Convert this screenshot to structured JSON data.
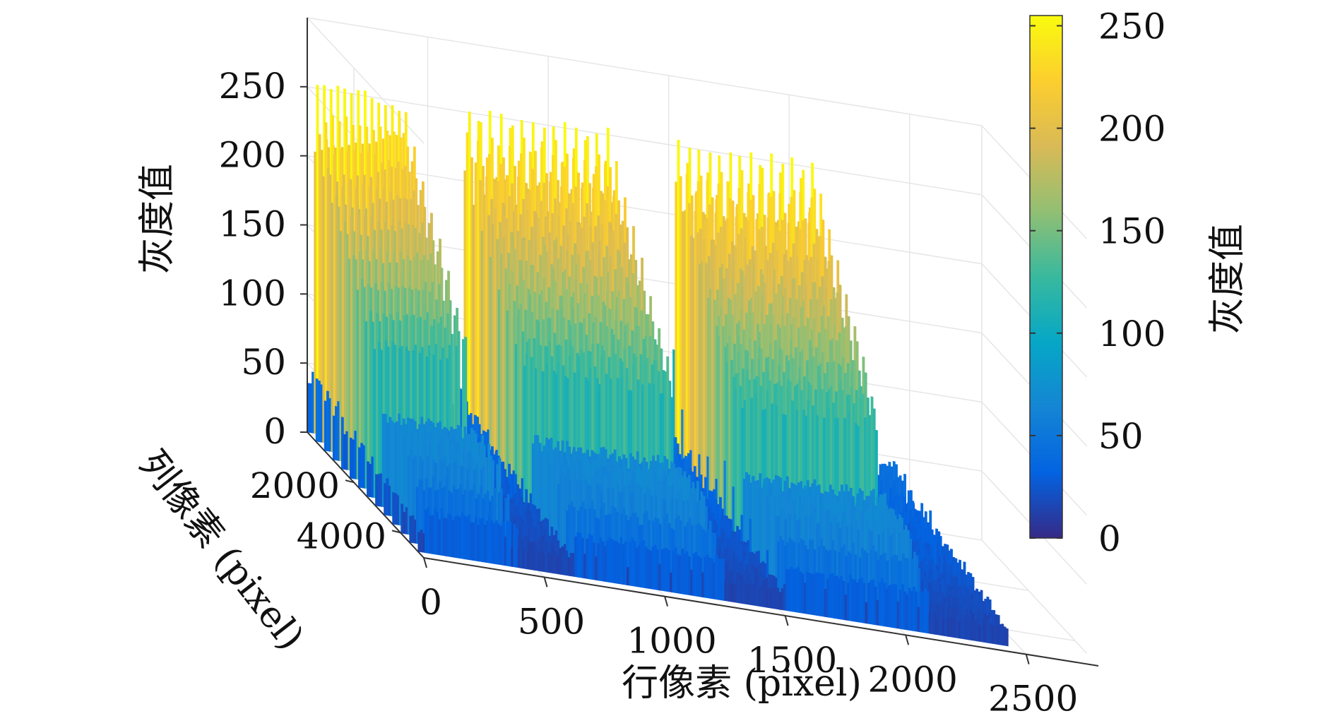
{
  "chart_data": {
    "type": "surface",
    "zlabel": "灰度值",
    "xlabel": "行像素 (pixel)",
    "ylabel": "列像素 (pixel)",
    "x_ticks": [
      "0",
      "500",
      "1000",
      "1500",
      "2000",
      "2500"
    ],
    "y_ticks": [
      "2000",
      "4000"
    ],
    "z_ticks": [
      "0",
      "50",
      "100",
      "150",
      "200",
      "250"
    ],
    "xlim": [
      0,
      2800
    ],
    "ylim": [
      0,
      5000
    ],
    "zlim": [
      0,
      300
    ],
    "colormap": "parula",
    "colorbar": {
      "label": "灰度值",
      "ticks": [
        "0",
        "50",
        "100",
        "150",
        "200",
        "250"
      ],
      "range": [
        0,
        255
      ],
      "colors": [
        "#352a87",
        "#0363e1",
        "#1485d4",
        "#06a7c6",
        "#38b99e",
        "#92bf73",
        "#d9ba56",
        "#fcce2e",
        "#f9fb0e"
      ]
    },
    "surface_profile": {
      "description_free": true,
      "bright_bands_x": [
        [
          30,
          420
        ],
        [
          650,
          1270
        ],
        [
          1520,
          2120
        ]
      ],
      "peak_value": 250,
      "band_plateau": 200,
      "dark_gap_value": 30,
      "floor_value": 10
    }
  }
}
